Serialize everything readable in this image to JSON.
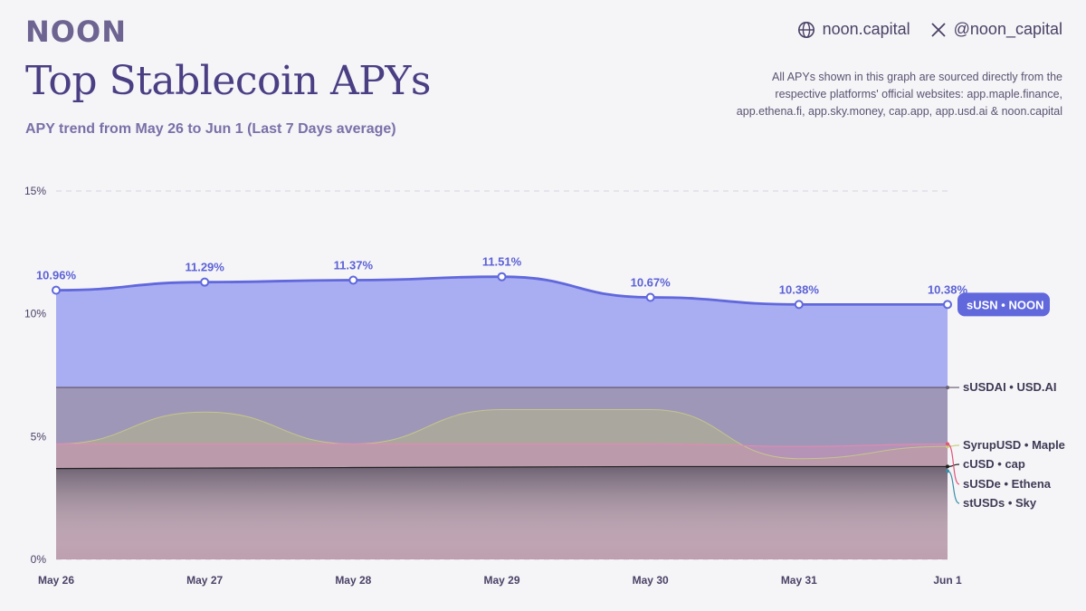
{
  "brand": {
    "logo": "NOON"
  },
  "header": {
    "website": "noon.capital",
    "twitter": "@noon_capital",
    "website_icon": "globe-icon",
    "twitter_icon": "x-logo-icon"
  },
  "title": "Top Stablecoin APYs",
  "subtitle": "APY trend from May 26 to Jun 1 (Last 7 Days average)",
  "source_note": "All APYs shown in this graph are sourced directly from the respective platforms' official websites: app.maple.finance, app.ethena.fi, app.sky.money, cap.app, app.usd.ai & noon.capital",
  "colors": {
    "accent": "#6068dc",
    "usdai": "#6b6176"
  },
  "chart_data": {
    "type": "area",
    "categories": [
      "May 26",
      "May 27",
      "May 28",
      "May 29",
      "May 30",
      "May 31",
      "Jun 1"
    ],
    "ylim": [
      0,
      15
    ],
    "yticks": [
      "0%",
      "5%",
      "10%",
      "15%"
    ],
    "grid": true,
    "series": [
      {
        "name": "sUSN",
        "brand": "NOON",
        "values": [
          10.96,
          11.29,
          11.37,
          11.51,
          10.67,
          10.38,
          10.38
        ],
        "labels": [
          "10.96%",
          "11.29%",
          "11.37%",
          "11.51%",
          "10.67%",
          "10.38%",
          "10.38%"
        ],
        "color": "#6068dc"
      },
      {
        "name": "sUSDAI",
        "brand": "USD.AI",
        "values": [
          7.0,
          7.0,
          7.0,
          7.0,
          7.0,
          7.0,
          7.0
        ],
        "color": "#6b6176"
      },
      {
        "name": "SyrupUSD",
        "brand": "Maple",
        "values": [
          4.7,
          6.0,
          4.7,
          6.1,
          6.1,
          4.1,
          4.6
        ],
        "color": "#c8d27a"
      },
      {
        "name": "cUSD",
        "brand": "cap",
        "values": [
          3.7,
          3.72,
          3.74,
          3.76,
          3.78,
          3.78,
          3.78
        ],
        "color": "#222222"
      },
      {
        "name": "sUSDe",
        "brand": "Ethena",
        "values": [
          4.7,
          4.7,
          4.7,
          4.7,
          4.7,
          4.6,
          4.7
        ],
        "color": "#e0567a"
      },
      {
        "name": "stUSDs",
        "brand": "Sky",
        "values": [
          3.6,
          3.6,
          3.6,
          3.6,
          3.6,
          3.6,
          3.6
        ],
        "color": "#3b8fa8"
      }
    ]
  }
}
